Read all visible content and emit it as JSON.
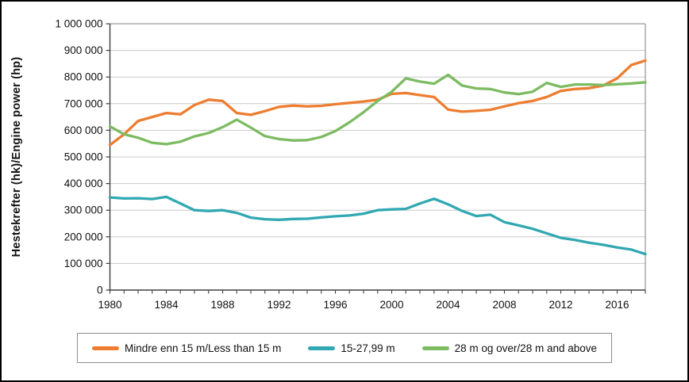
{
  "chart_data": {
    "type": "line",
    "title": "",
    "xlabel": "",
    "ylabel": "Hestekrefter (hk)/Engine power (hp)",
    "ylim": [
      0,
      1000000
    ],
    "y_tick_step": 100000,
    "y_tick_labels": [
      "0",
      "100 000",
      "200 000",
      "300 000",
      "400 000",
      "500 000",
      "600 000",
      "700 000",
      "800 000",
      "900 000",
      "1 000 000"
    ],
    "x": [
      1980,
      1981,
      1982,
      1983,
      1984,
      1985,
      1986,
      1987,
      1988,
      1989,
      1990,
      1991,
      1992,
      1993,
      1994,
      1995,
      1996,
      1997,
      1998,
      1999,
      2000,
      2001,
      2002,
      2003,
      2004,
      2005,
      2006,
      2007,
      2008,
      2009,
      2010,
      2011,
      2012,
      2013,
      2014,
      2015,
      2016,
      2017,
      2018
    ],
    "x_tick_years": [
      1980,
      1984,
      1988,
      1992,
      1996,
      2000,
      2004,
      2008,
      2012,
      2016
    ],
    "x_tick_labels": [
      "1980",
      "1984",
      "1988",
      "1992",
      "1996",
      "2000",
      "2004",
      "2008",
      "2012",
      "2016"
    ],
    "grid": true,
    "legend_position": "bottom",
    "colors": {
      "grid": "#c9c9c9",
      "plot_border": "#9b9b9b",
      "axis": "#404040",
      "text": "#111111"
    },
    "series": [
      {
        "name": "Mindre enn 15 m/Less than 15 m",
        "color": "#ED7D31",
        "values": [
          545000,
          585000,
          635000,
          650000,
          665000,
          660000,
          695000,
          715000,
          710000,
          665000,
          658000,
          672000,
          688000,
          693000,
          690000,
          692000,
          698000,
          703000,
          708000,
          715000,
          737000,
          740000,
          732000,
          725000,
          678000,
          670000,
          673000,
          677000,
          690000,
          702000,
          710000,
          725000,
          748000,
          755000,
          758000,
          768000,
          795000,
          845000,
          862000
        ]
      },
      {
        "name": "15-27,99 m",
        "color": "#31A8B2",
        "values": [
          348000,
          344000,
          345000,
          342000,
          350000,
          325000,
          300000,
          297000,
          300000,
          290000,
          272000,
          266000,
          264000,
          267000,
          268000,
          273000,
          277000,
          280000,
          287000,
          300000,
          303000,
          305000,
          325000,
          343000,
          322000,
          297000,
          278000,
          283000,
          255000,
          243000,
          230000,
          213000,
          196000,
          188000,
          178000,
          170000,
          160000,
          152000,
          135000
        ]
      },
      {
        "name": "28 m og over/28 m and above",
        "color": "#7CBB61",
        "values": [
          615000,
          585000,
          572000,
          553000,
          548000,
          557000,
          577000,
          590000,
          612000,
          640000,
          610000,
          578000,
          567000,
          562000,
          563000,
          575000,
          597000,
          630000,
          668000,
          710000,
          745000,
          795000,
          783000,
          775000,
          808000,
          768000,
          757000,
          755000,
          742000,
          736000,
          745000,
          778000,
          763000,
          772000,
          772000,
          770000,
          773000,
          776000,
          780000
        ]
      }
    ]
  }
}
